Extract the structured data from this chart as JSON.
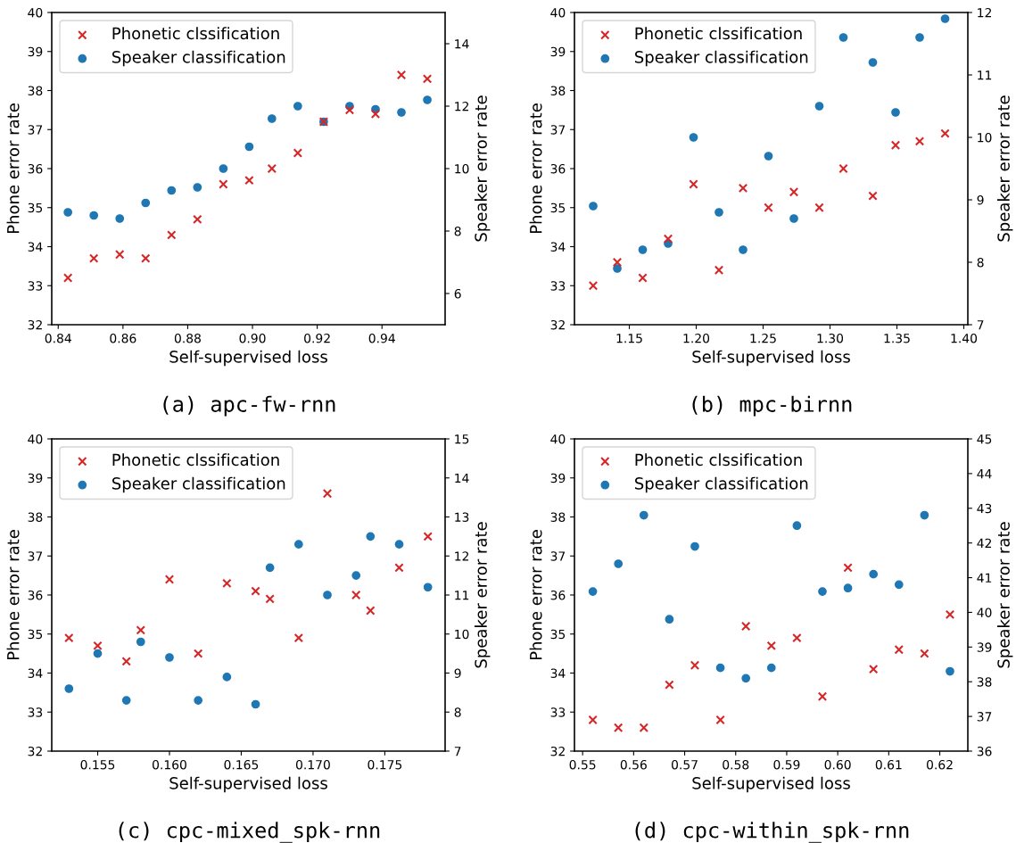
{
  "chart_data": [
    {
      "type": "scatter",
      "xlabel": "Self-supervised loss",
      "ylabel": "Phone error rate",
      "y2label": "Speaker error rate",
      "annotations": [
        "(a) apc-fw-rnn"
      ],
      "xlim": [
        0.838,
        0.9595
      ],
      "xticks": [
        {
          "value": 0.84,
          "label": "0.84"
        },
        {
          "value": 0.86,
          "label": "0.86"
        },
        {
          "value": 0.88,
          "label": "0.88"
        },
        {
          "value": 0.9,
          "label": "0.90"
        },
        {
          "value": 0.92,
          "label": "0.92"
        },
        {
          "value": 0.94,
          "label": "0.94"
        }
      ],
      "ylim": [
        32,
        40
      ],
      "yticks": [
        32,
        33,
        34,
        35,
        36,
        37,
        38,
        39,
        40
      ],
      "y2lim": [
        5,
        15
      ],
      "y2ticks": [
        6,
        8,
        10,
        12,
        14
      ],
      "legend": "top left",
      "grid": false,
      "x": [
        0.843,
        0.851,
        0.859,
        0.867,
        0.875,
        0.883,
        0.891,
        0.899,
        0.906,
        0.914,
        0.922,
        0.93,
        0.938,
        0.946,
        0.954
      ],
      "series": [
        {
          "name": "Phonetic clssification",
          "color": "#d62728",
          "marker": "cross",
          "values": [
            33.2,
            33.7,
            33.8,
            33.7,
            34.3,
            34.7,
            35.6,
            35.7,
            36.0,
            36.4,
            37.2,
            37.5,
            37.4,
            38.4,
            38.3
          ]
        },
        {
          "name": "Speaker classification",
          "color": "#1f77b4",
          "marker": "circle",
          "axis": "y2",
          "values": [
            8.6,
            8.5,
            8.4,
            8.9,
            9.3,
            9.4,
            10.0,
            10.7,
            11.6,
            12.0,
            11.5,
            12.0,
            11.9,
            11.8,
            12.2
          ]
        }
      ]
    },
    {
      "type": "scatter",
      "xlabel": "Self-supervised loss",
      "ylabel": "Phone error rate",
      "y2label": "Speaker error rate",
      "annotations": [
        "(b) mpc-birnn"
      ],
      "xlim": [
        1.109,
        1.403
      ],
      "xticks": [
        {
          "value": 1.15,
          "label": "1.15"
        },
        {
          "value": 1.2,
          "label": "1.20"
        },
        {
          "value": 1.25,
          "label": "1.25"
        },
        {
          "value": 1.3,
          "label": "1.30"
        },
        {
          "value": 1.35,
          "label": "1.35"
        },
        {
          "value": 1.4,
          "label": "1.40"
        }
      ],
      "ylim": [
        32,
        40
      ],
      "yticks": [
        32,
        33,
        34,
        35,
        36,
        37,
        38,
        39,
        40
      ],
      "y2lim": [
        7,
        12
      ],
      "y2ticks": [
        7,
        8,
        9,
        10,
        11,
        12
      ],
      "legend": "top left",
      "grid": false,
      "x": [
        1.123,
        1.141,
        1.16,
        1.179,
        1.198,
        1.217,
        1.235,
        1.254,
        1.273,
        1.292,
        1.31,
        1.332,
        1.349,
        1.367,
        1.386
      ],
      "series": [
        {
          "name": "Phonetic clssification",
          "color": "#d62728",
          "marker": "cross",
          "values": [
            33.0,
            33.6,
            33.2,
            34.2,
            35.6,
            33.4,
            35.5,
            35.0,
            35.4,
            35.0,
            36.0,
            35.3,
            36.6,
            36.7,
            36.9
          ]
        },
        {
          "name": "Speaker classification",
          "color": "#1f77b4",
          "marker": "circle",
          "axis": "y2",
          "values": [
            8.9,
            7.9,
            8.2,
            8.3,
            10.0,
            8.8,
            8.2,
            9.7,
            8.7,
            10.5,
            11.6,
            11.2,
            10.4,
            11.6,
            11.9
          ]
        }
      ]
    },
    {
      "type": "scatter",
      "xlabel": "Self-supervised loss",
      "ylabel": "Phone error rate",
      "y2label": "Speaker error rate",
      "annotations": [
        "(c) cpc-mixed_spk-rnn"
      ],
      "xlim": [
        0.1518,
        0.1792
      ],
      "xticks": [
        {
          "value": 0.155,
          "label": "0.155"
        },
        {
          "value": 0.16,
          "label": "0.160"
        },
        {
          "value": 0.165,
          "label": "0.165"
        },
        {
          "value": 0.17,
          "label": "0.170"
        },
        {
          "value": 0.175,
          "label": "0.175"
        }
      ],
      "ylim": [
        32,
        40
      ],
      "yticks": [
        32,
        33,
        34,
        35,
        36,
        37,
        38,
        39,
        40
      ],
      "y2lim": [
        7,
        15
      ],
      "y2ticks": [
        7,
        8,
        9,
        10,
        11,
        12,
        13,
        14,
        15
      ],
      "legend": "top left",
      "grid": false,
      "x": [
        0.153,
        0.155,
        0.157,
        0.158,
        0.16,
        0.162,
        0.164,
        0.166,
        0.167,
        0.169,
        0.171,
        0.173,
        0.174,
        0.176,
        0.178
      ],
      "series": [
        {
          "name": "Phonetic clssification",
          "color": "#d62728",
          "marker": "cross",
          "values": [
            34.9,
            34.7,
            34.3,
            35.1,
            36.4,
            34.5,
            36.3,
            36.1,
            35.9,
            34.9,
            38.6,
            36.0,
            35.6,
            36.7,
            37.5
          ]
        },
        {
          "name": "Speaker classification",
          "color": "#1f77b4",
          "marker": "circle",
          "axis": "y2",
          "values": [
            8.6,
            9.5,
            8.3,
            9.8,
            9.4,
            8.3,
            8.9,
            8.2,
            11.7,
            12.3,
            11.0,
            11.5,
            12.5,
            12.3,
            11.2
          ]
        }
      ]
    },
    {
      "type": "scatter",
      "xlabel": "Self-supervised loss",
      "ylabel": "Phone error rate",
      "y2label": "Speaker error rate",
      "annotations": [
        "(d) cpc-within_spk-rnn"
      ],
      "xlim": [
        0.5484,
        0.6255
      ],
      "xticks": [
        {
          "value": 0.55,
          "label": "0.55"
        },
        {
          "value": 0.56,
          "label": "0.56"
        },
        {
          "value": 0.57,
          "label": "0.57"
        },
        {
          "value": 0.58,
          "label": "0.58"
        },
        {
          "value": 0.59,
          "label": "0.59"
        },
        {
          "value": 0.6,
          "label": "0.60"
        },
        {
          "value": 0.61,
          "label": "0.61"
        },
        {
          "value": 0.62,
          "label": "0.62"
        }
      ],
      "ylim": [
        32,
        40
      ],
      "yticks": [
        32,
        33,
        34,
        35,
        36,
        37,
        38,
        39,
        40
      ],
      "y2lim": [
        36,
        45
      ],
      "y2ticks": [
        36,
        37,
        38,
        39,
        40,
        41,
        42,
        43,
        44,
        45
      ],
      "legend": "top left",
      "grid": false,
      "x": [
        0.552,
        0.557,
        0.562,
        0.567,
        0.572,
        0.577,
        0.582,
        0.587,
        0.592,
        0.597,
        0.602,
        0.607,
        0.612,
        0.617,
        0.622
      ],
      "series": [
        {
          "name": "Phonetic clssification",
          "color": "#d62728",
          "marker": "cross",
          "values": [
            32.8,
            32.6,
            32.6,
            33.7,
            34.2,
            32.8,
            35.2,
            34.7,
            34.9,
            33.4,
            36.7,
            34.1,
            34.6,
            34.5,
            35.5
          ]
        },
        {
          "name": "Speaker classification",
          "color": "#1f77b4",
          "marker": "circle",
          "axis": "y2",
          "values": [
            40.6,
            41.4,
            42.8,
            39.8,
            41.9,
            38.4,
            38.1,
            38.4,
            42.5,
            40.6,
            40.7,
            41.1,
            40.8,
            42.8,
            38.3
          ]
        }
      ]
    }
  ]
}
